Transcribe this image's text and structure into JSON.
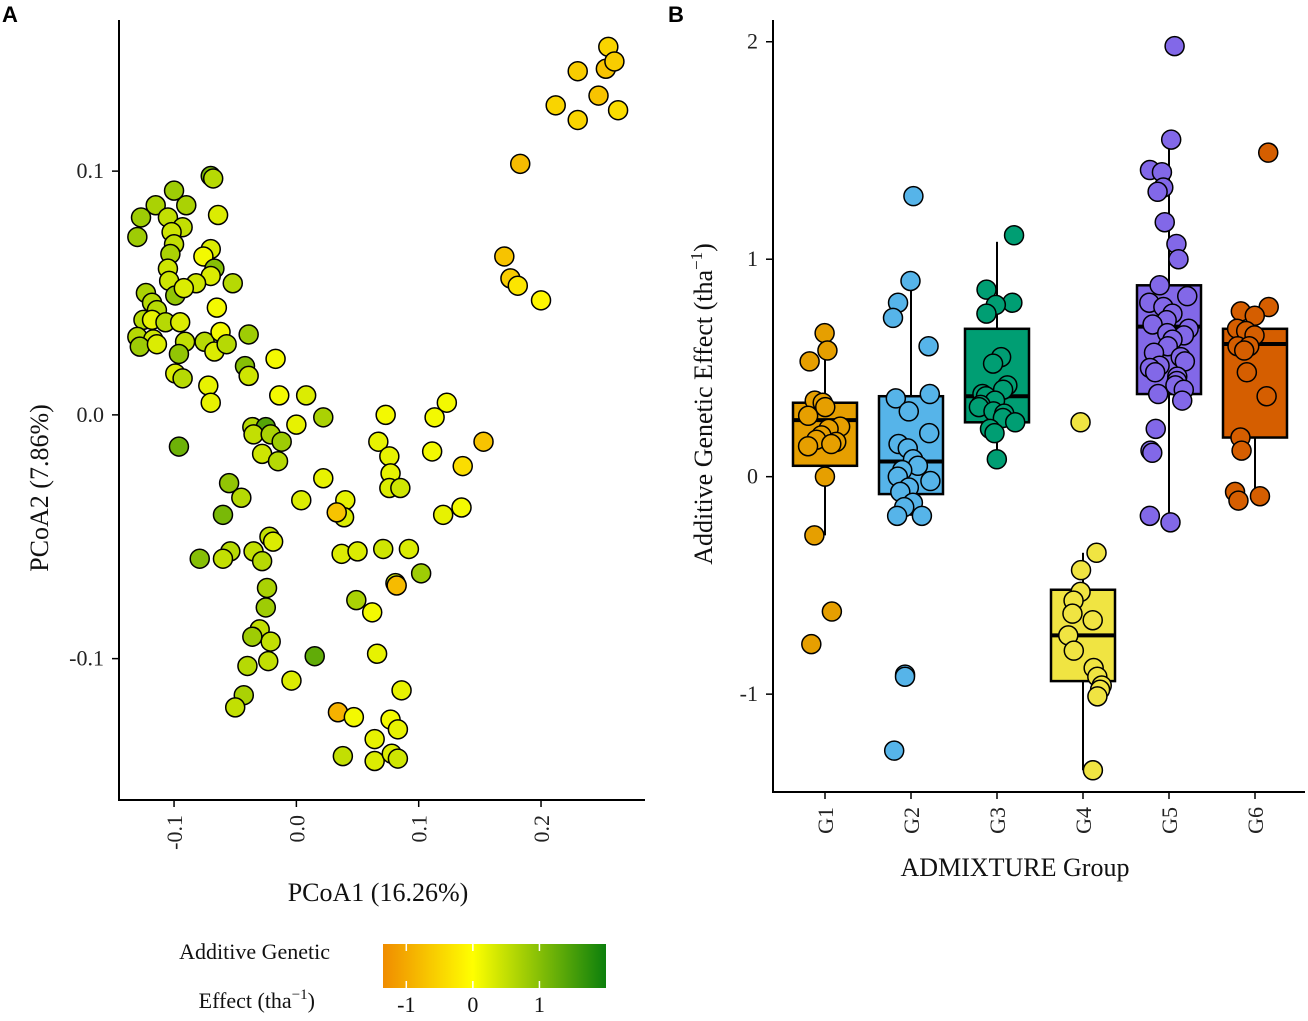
{
  "chart_data": [
    {
      "panel": "A",
      "type": "scatter",
      "xlabel": "PCoA1 (16.26%)",
      "ylabel": "PCoA2 (7.86%)",
      "xlim": [
        -0.145,
        0.285
      ],
      "ylim": [
        -0.158,
        0.162
      ],
      "x_ticks": [
        -0.1,
        0.0,
        0.1,
        0.2
      ],
      "x_tick_labels": [
        "-0.1",
        "0.0",
        "0.1",
        "0.2"
      ],
      "y_ticks": [
        -0.1,
        0.0,
        0.1
      ],
      "y_tick_labels": [
        "-0.1",
        "0.0",
        "0.1"
      ],
      "color_scale": {
        "title_line1": "Additive Genetic",
        "title_line2": "Effect (tha",
        "title_sup": "−1",
        "title_close": ")",
        "range": [
          -1.35,
          2.0
        ],
        "ticks": [
          -1,
          0,
          1
        ],
        "tick_labels": [
          "-1",
          "0",
          "1"
        ],
        "stops": [
          {
            "value": -1.35,
            "color": "#f08c00"
          },
          {
            "value": 0.0,
            "color": "#ffff00"
          },
          {
            "value": 2.0,
            "color": "#0c7f0c"
          }
        ]
      },
      "points": [
        [
          0.255,
          0.151,
          -0.5
        ],
        [
          0.23,
          0.141,
          -0.6
        ],
        [
          0.253,
          0.142,
          -0.7
        ],
        [
          0.26,
          0.145,
          -0.6
        ],
        [
          0.212,
          0.127,
          -0.5
        ],
        [
          0.247,
          0.131,
          -0.7
        ],
        [
          0.23,
          0.121,
          -0.5
        ],
        [
          0.263,
          0.125,
          -0.4
        ],
        [
          0.183,
          0.103,
          -0.8
        ],
        [
          0.17,
          0.065,
          -0.7
        ],
        [
          0.175,
          0.056,
          -0.6
        ],
        [
          0.181,
          0.053,
          -0.3
        ],
        [
          0.2,
          0.047,
          -0.1
        ],
        [
          -0.07,
          0.098,
          1.1
        ],
        [
          -0.068,
          0.097,
          0.6
        ],
        [
          -0.1,
          0.092,
          0.8
        ],
        [
          -0.115,
          0.086,
          0.7
        ],
        [
          -0.09,
          0.086,
          0.7
        ],
        [
          -0.127,
          0.081,
          0.8
        ],
        [
          -0.105,
          0.081,
          0.5
        ],
        [
          -0.064,
          0.082,
          0.3
        ],
        [
          -0.093,
          0.077,
          0.5
        ],
        [
          -0.102,
          0.075,
          0.4
        ],
        [
          -0.13,
          0.073,
          0.8
        ],
        [
          -0.1,
          0.07,
          0.5
        ],
        [
          -0.07,
          0.068,
          0.3
        ],
        [
          -0.103,
          0.066,
          0.7
        ],
        [
          -0.076,
          0.065,
          0.1
        ],
        [
          -0.105,
          0.06,
          0.4
        ],
        [
          -0.067,
          0.06,
          1.0
        ],
        [
          -0.07,
          0.057,
          0.3
        ],
        [
          -0.052,
          0.054,
          0.6
        ],
        [
          -0.082,
          0.054,
          0.4
        ],
        [
          -0.104,
          0.055,
          0.4
        ],
        [
          -0.123,
          0.05,
          0.7
        ],
        [
          -0.118,
          0.046,
          0.6
        ],
        [
          -0.099,
          0.049,
          0.9
        ],
        [
          -0.092,
          0.052,
          0.3
        ],
        [
          -0.065,
          0.044,
          0.1
        ],
        [
          -0.114,
          0.043,
          0.6
        ],
        [
          -0.125,
          0.039,
          0.6
        ],
        [
          -0.118,
          0.039,
          0.2
        ],
        [
          -0.107,
          0.038,
          0.6
        ],
        [
          -0.095,
          0.038,
          0.3
        ],
        [
          -0.13,
          0.032,
          0.6
        ],
        [
          -0.117,
          0.031,
          0.4
        ],
        [
          -0.091,
          0.03,
          0.5
        ],
        [
          -0.075,
          0.03,
          0.6
        ],
        [
          -0.062,
          0.034,
          0.1
        ],
        [
          -0.128,
          0.028,
          0.8
        ],
        [
          -0.114,
          0.029,
          0.3
        ],
        [
          -0.096,
          0.025,
          0.9
        ],
        [
          -0.067,
          0.026,
          0.3
        ],
        [
          -0.057,
          0.029,
          0.6
        ],
        [
          -0.039,
          0.033,
          0.8
        ],
        [
          -0.042,
          0.02,
          1.0
        ],
        [
          -0.099,
          0.017,
          0.3
        ],
        [
          -0.093,
          0.015,
          0.6
        ],
        [
          -0.072,
          0.012,
          0.2
        ],
        [
          -0.039,
          0.016,
          0.4
        ],
        [
          -0.014,
          0.008,
          0.1
        ],
        [
          -0.07,
          0.005,
          0.2
        ],
        [
          -0.017,
          0.023,
          0.1
        ],
        [
          -0.036,
          -0.005,
          0.6
        ],
        [
          -0.025,
          -0.005,
          1.4
        ],
        [
          -0.035,
          -0.008,
          0.5
        ],
        [
          -0.021,
          -0.008,
          0.7
        ],
        [
          -0.012,
          -0.011,
          0.8
        ],
        [
          -0.028,
          -0.016,
          0.4
        ],
        [
          -0.015,
          -0.019,
          0.6
        ],
        [
          -0.096,
          -0.013,
          1.2
        ],
        [
          -0.055,
          -0.028,
          0.9
        ],
        [
          -0.045,
          -0.034,
          0.6
        ],
        [
          -0.06,
          -0.041,
          1.1
        ],
        [
          -0.022,
          -0.05,
          0.5
        ],
        [
          -0.019,
          -0.052,
          0.3
        ],
        [
          -0.035,
          -0.056,
          0.5
        ],
        [
          -0.054,
          -0.056,
          0.6
        ],
        [
          -0.06,
          -0.059,
          0.5
        ],
        [
          -0.079,
          -0.059,
          1.0
        ],
        [
          -0.028,
          -0.06,
          0.6
        ],
        [
          -0.024,
          -0.071,
          0.7
        ],
        [
          -0.025,
          -0.079,
          0.8
        ],
        [
          -0.03,
          -0.088,
          0.5
        ],
        [
          -0.021,
          -0.093,
          0.5
        ],
        [
          -0.036,
          -0.091,
          0.8
        ],
        [
          -0.04,
          -0.103,
          0.6
        ],
        [
          -0.023,
          -0.101,
          0.5
        ],
        [
          0.015,
          -0.099,
          1.3
        ],
        [
          -0.043,
          -0.115,
          0.7
        ],
        [
          -0.004,
          -0.109,
          0.3
        ],
        [
          -0.05,
          -0.12,
          0.5
        ],
        [
          0.008,
          0.008,
          0.3
        ],
        [
          0.0,
          -0.004,
          0.2
        ],
        [
          0.022,
          -0.001,
          0.7
        ],
        [
          0.073,
          0.0,
          0.1
        ],
        [
          0.123,
          0.005,
          0.1
        ],
        [
          0.113,
          -0.001,
          0.1
        ],
        [
          0.153,
          -0.011,
          -0.7
        ],
        [
          0.067,
          -0.011,
          0.2
        ],
        [
          0.076,
          -0.017,
          0.2
        ],
        [
          0.111,
          -0.015,
          0.1
        ],
        [
          0.136,
          -0.021,
          -0.4
        ],
        [
          0.077,
          -0.024,
          0.2
        ],
        [
          0.022,
          -0.026,
          0.2
        ],
        [
          0.004,
          -0.035,
          0.3
        ],
        [
          0.04,
          -0.035,
          0.2
        ],
        [
          0.076,
          -0.03,
          0.3
        ],
        [
          0.085,
          -0.03,
          0.4
        ],
        [
          0.039,
          -0.042,
          0.3
        ],
        [
          0.033,
          -0.04,
          -0.7
        ],
        [
          0.12,
          -0.041,
          0.2
        ],
        [
          0.135,
          -0.038,
          0.1
        ],
        [
          0.037,
          -0.057,
          0.3
        ],
        [
          0.05,
          -0.056,
          0.3
        ],
        [
          0.071,
          -0.055,
          0.4
        ],
        [
          0.092,
          -0.055,
          0.3
        ],
        [
          0.102,
          -0.065,
          0.8
        ],
        [
          0.081,
          -0.069,
          0.4
        ],
        [
          0.082,
          -0.07,
          -0.8
        ],
        [
          0.049,
          -0.076,
          0.7
        ],
        [
          0.062,
          -0.081,
          0.1
        ],
        [
          0.066,
          -0.098,
          0.2
        ],
        [
          0.086,
          -0.113,
          0.2
        ],
        [
          0.034,
          -0.122,
          -0.9
        ],
        [
          0.047,
          -0.124,
          0.1
        ],
        [
          0.077,
          -0.125,
          0.1
        ],
        [
          0.083,
          -0.129,
          0.2
        ],
        [
          0.064,
          -0.133,
          0.2
        ],
        [
          0.038,
          -0.14,
          0.5
        ],
        [
          0.064,
          -0.142,
          0.3
        ],
        [
          0.078,
          -0.139,
          0.3
        ],
        [
          0.083,
          -0.141,
          0.4
        ]
      ]
    },
    {
      "panel": "B",
      "type": "box",
      "xlabel": "ADMIXTURE Group",
      "ylabel": "Additive Genetic Effect (tha",
      "ylabel_sup": "−1",
      "ylabel_close": ")",
      "ylim": [
        -1.45,
        2.1
      ],
      "y_ticks": [
        -1,
        0,
        1,
        2
      ],
      "y_tick_labels": [
        "-1",
        "0",
        "1",
        "2"
      ],
      "categories": [
        "G1",
        "G2",
        "G3",
        "G4",
        "G5",
        "G6"
      ],
      "groups": [
        {
          "name": "G1",
          "color": "#e69f00",
          "q1": 0.05,
          "median": 0.26,
          "q3": 0.34,
          "whisker_low": -0.27,
          "whisker_high": 0.66,
          "points": [
            0.66,
            0.58,
            0.53,
            0.35,
            0.34,
            0.32,
            0.28,
            0.23,
            0.22,
            0.19,
            0.17,
            0.16,
            0.15,
            0.14,
            0.0,
            -0.27,
            -0.62,
            -0.77
          ]
        },
        {
          "name": "G2",
          "color": "#56b4e9",
          "q1": -0.08,
          "median": 0.07,
          "q3": 0.37,
          "whisker_low": -0.18,
          "whisker_high": 0.88,
          "points": [
            1.29,
            0.9,
            0.8,
            0.73,
            0.6,
            0.38,
            0.36,
            0.3,
            0.2,
            0.15,
            0.13,
            0.08,
            0.05,
            0.03,
            0.0,
            -0.02,
            -0.05,
            -0.07,
            -0.12,
            -0.14,
            -0.18,
            -0.18,
            -0.91,
            -0.92,
            -1.26
          ]
        },
        {
          "name": "G3",
          "color": "#009e73",
          "q1": 0.25,
          "median": 0.37,
          "q3": 0.68,
          "whisker_low": 0.08,
          "whisker_high": 1.08,
          "points": [
            1.11,
            0.86,
            0.8,
            0.79,
            0.75,
            0.55,
            0.52,
            0.42,
            0.4,
            0.38,
            0.37,
            0.35,
            0.33,
            0.32,
            0.3,
            0.29,
            0.27,
            0.25,
            0.22,
            0.2,
            0.08
          ]
        },
        {
          "name": "G4",
          "color": "#f0e442",
          "q1": -0.94,
          "median": -0.73,
          "q3": -0.52,
          "whisker_low": -1.35,
          "whisker_high": -0.35,
          "points": [
            0.25,
            -0.35,
            -0.43,
            -0.53,
            -0.57,
            -0.63,
            -0.66,
            -0.73,
            -0.8,
            -0.88,
            -0.92,
            -0.96,
            -0.98,
            -1.01,
            -1.35
          ]
        },
        {
          "name": "G5",
          "color": "#8268e8",
          "q1": 0.38,
          "median": 0.69,
          "q3": 0.88,
          "whisker_low": -0.17,
          "whisker_high": 1.54,
          "points": [
            1.98,
            1.55,
            1.41,
            1.4,
            1.33,
            1.31,
            1.17,
            1.07,
            1.0,
            0.88,
            0.83,
            0.8,
            0.78,
            0.75,
            0.72,
            0.7,
            0.68,
            0.66,
            0.65,
            0.63,
            0.6,
            0.57,
            0.55,
            0.53,
            0.51,
            0.5,
            0.48,
            0.46,
            0.44,
            0.42,
            0.4,
            0.38,
            0.35,
            0.22,
            0.12,
            0.11,
            -0.18,
            -0.21
          ]
        },
        {
          "name": "G6",
          "color": "#d55e00",
          "q1": 0.18,
          "median": 0.61,
          "q3": 0.68,
          "whisker_low": -0.11,
          "whisker_high": 0.78,
          "points": [
            1.49,
            0.78,
            0.76,
            0.74,
            0.68,
            0.67,
            0.65,
            0.6,
            0.6,
            0.58,
            0.48,
            0.37,
            0.18,
            0.12,
            -0.07,
            -0.09,
            -0.11
          ]
        }
      ]
    }
  ]
}
